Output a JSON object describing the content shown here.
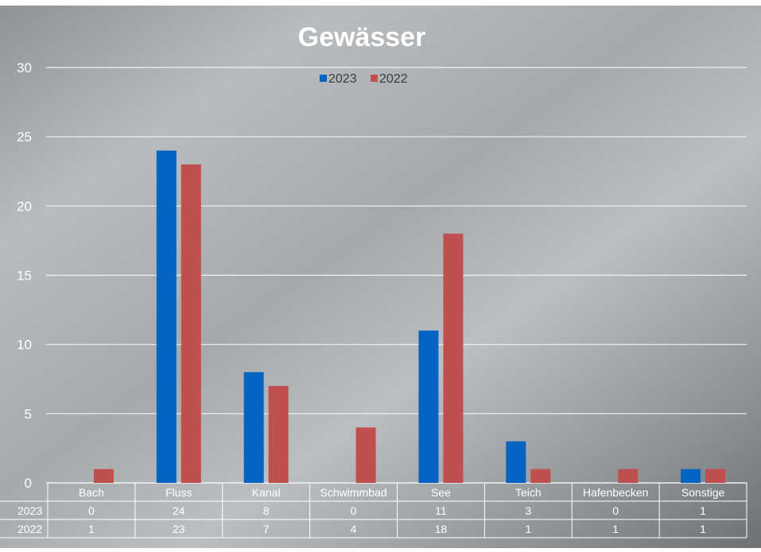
{
  "chart_data": {
    "type": "bar",
    "title": "Gewässer",
    "xlabel": "",
    "ylabel": "",
    "categories": [
      "Bach",
      "Fluss",
      "Kanal",
      "Schwimmbad",
      "See",
      "Teich",
      "Hafenbecken",
      "Sonstige"
    ],
    "series": [
      {
        "name": "2023",
        "color": "#0563C1",
        "values": [
          0,
          24,
          8,
          0,
          11,
          3,
          0,
          1
        ]
      },
      {
        "name": "2022",
        "color": "#C0504D",
        "values": [
          1,
          23,
          7,
          4,
          18,
          1,
          1,
          1
        ]
      }
    ],
    "ylim": [
      0,
      30
    ],
    "yticks": [
      0,
      5,
      10,
      15,
      20,
      25,
      30
    ],
    "grid": true,
    "legend": "top-center",
    "data_table": true,
    "colors": {
      "gridline": "#f2f2f2",
      "text": "#ffffff",
      "table_line": "#ffffff"
    }
  }
}
